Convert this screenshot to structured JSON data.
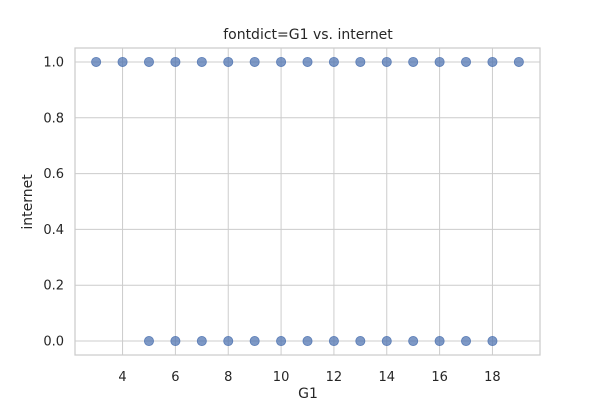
{
  "chart_data": {
    "type": "scatter",
    "title": "fontdict=G1 vs. internet",
    "xlabel": "G1",
    "ylabel": "internet",
    "xlim": [
      2.2,
      19.8
    ],
    "ylim": [
      -0.05,
      1.05
    ],
    "xticks": [
      4,
      6,
      8,
      10,
      12,
      14,
      16,
      18
    ],
    "yticks": [
      0.0,
      0.2,
      0.4,
      0.6,
      0.8,
      1.0
    ],
    "ytick_labels": [
      "0.0",
      "0.2",
      "0.4",
      "0.6",
      "0.8",
      "1.0"
    ],
    "grid": true,
    "marker_color": "#4c72b0",
    "points": [
      {
        "x": 3,
        "y": 1
      },
      {
        "x": 4,
        "y": 1
      },
      {
        "x": 5,
        "y": 1
      },
      {
        "x": 6,
        "y": 1
      },
      {
        "x": 7,
        "y": 1
      },
      {
        "x": 8,
        "y": 1
      },
      {
        "x": 9,
        "y": 1
      },
      {
        "x": 10,
        "y": 1
      },
      {
        "x": 11,
        "y": 1
      },
      {
        "x": 12,
        "y": 1
      },
      {
        "x": 13,
        "y": 1
      },
      {
        "x": 14,
        "y": 1
      },
      {
        "x": 15,
        "y": 1
      },
      {
        "x": 16,
        "y": 1
      },
      {
        "x": 17,
        "y": 1
      },
      {
        "x": 18,
        "y": 1
      },
      {
        "x": 19,
        "y": 1
      },
      {
        "x": 5,
        "y": 0
      },
      {
        "x": 6,
        "y": 0
      },
      {
        "x": 7,
        "y": 0
      },
      {
        "x": 8,
        "y": 0
      },
      {
        "x": 9,
        "y": 0
      },
      {
        "x": 10,
        "y": 0
      },
      {
        "x": 11,
        "y": 0
      },
      {
        "x": 12,
        "y": 0
      },
      {
        "x": 13,
        "y": 0
      },
      {
        "x": 14,
        "y": 0
      },
      {
        "x": 15,
        "y": 0
      },
      {
        "x": 16,
        "y": 0
      },
      {
        "x": 17,
        "y": 0
      },
      {
        "x": 18,
        "y": 0
      }
    ]
  }
}
